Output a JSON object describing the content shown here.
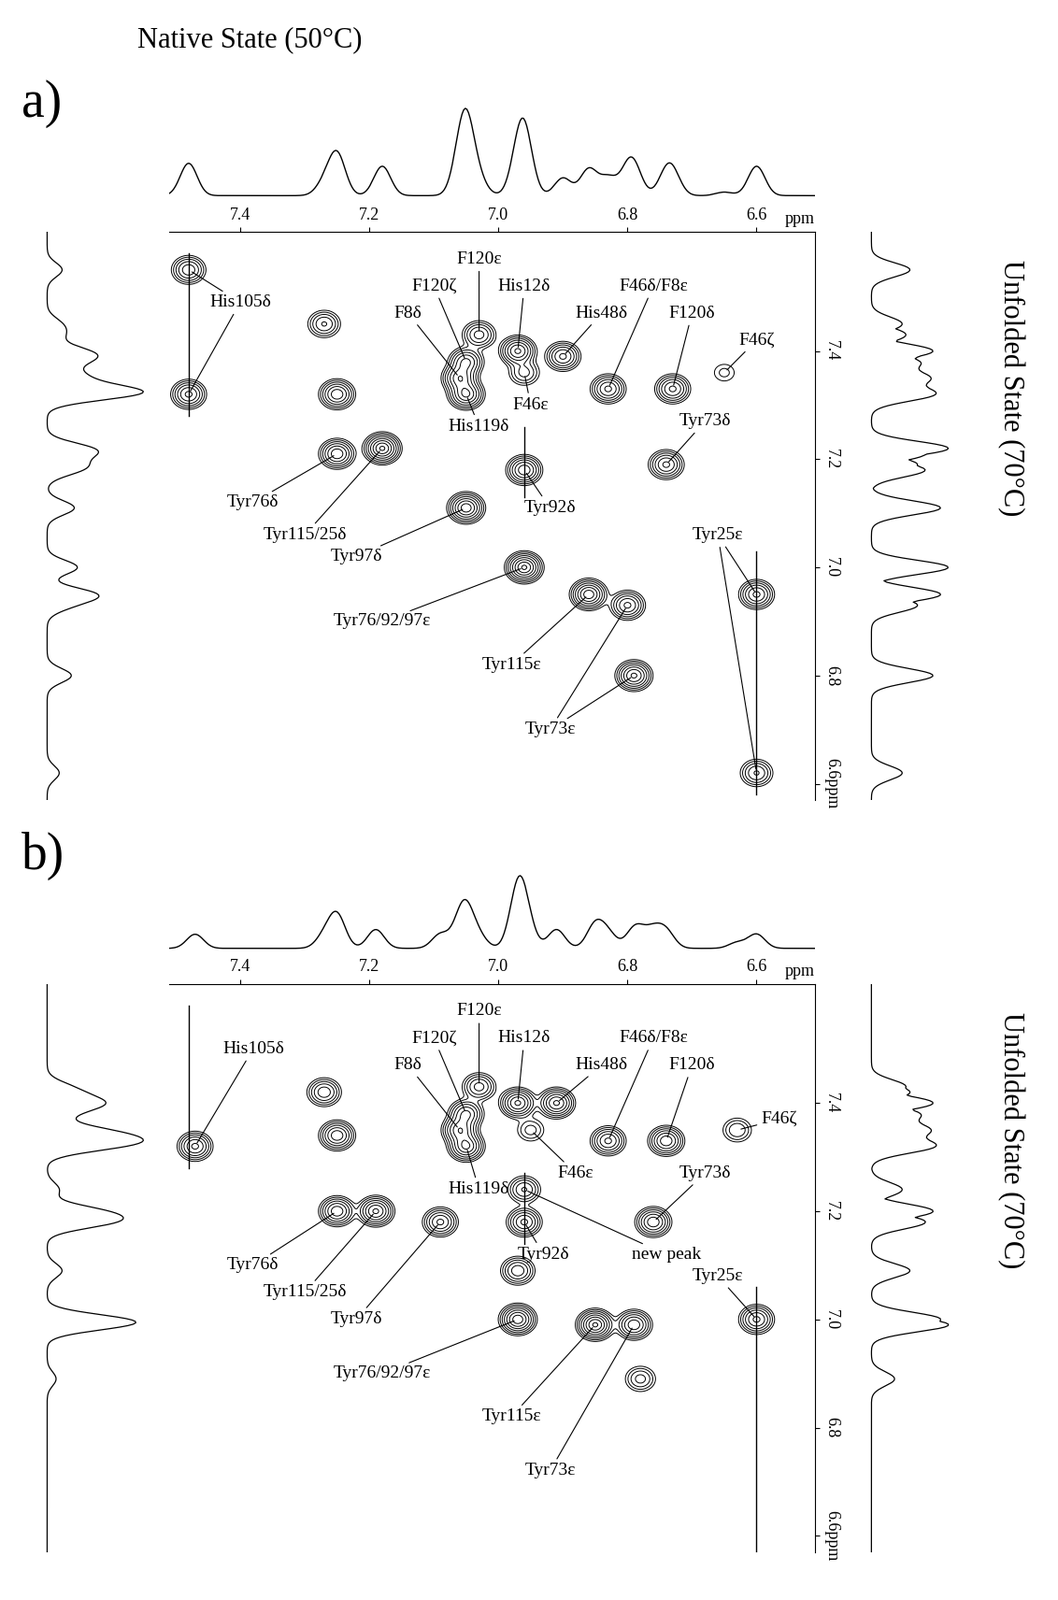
{
  "chart_data": [
    {
      "type": "contour",
      "label": "a)",
      "x_label": "Native State (50°C)",
      "y_label": "Unfolded State (70°C)",
      "x_unit": "ppm",
      "xlim": [
        7.51,
        6.51
      ],
      "ylim": [
        6.57,
        7.62
      ],
      "xticks": [
        7.4,
        7.2,
        7.0,
        6.8,
        6.6
      ],
      "yticks": [
        7.4,
        7.2,
        7.0,
        6.8,
        {
          "value": 6.6,
          "label": "6.6ppm"
        }
      ],
      "color": "#000000",
      "lines": [
        {
          "x": 7.48,
          "y": [
            7.58,
            7.28
          ]
        },
        {
          "x": 6.96,
          "y": [
            7.26,
            7.13
          ]
        },
        {
          "x": 6.6,
          "y": [
            7.03,
            6.58
          ]
        }
      ],
      "peaks": [
        {
          "label": "His105δ",
          "x": 7.48,
          "y": 7.55,
          "intensity": 0.5
        },
        {
          "label": "His105δ",
          "x": 7.48,
          "y": 7.32,
          "intensity": 0.6
        },
        {
          "label": null,
          "x": 7.27,
          "y": 7.45,
          "intensity": 0.4
        },
        {
          "label": null,
          "x": 7.25,
          "y": 7.32,
          "intensity": 0.7
        },
        {
          "label": "F120ε",
          "x": 7.03,
          "y": 7.43,
          "intensity": 0.45
        },
        {
          "label": "F120ζ",
          "x": 7.05,
          "y": 7.38,
          "intensity": 0.6
        },
        {
          "label": "F8δ",
          "x": 7.06,
          "y": 7.35,
          "intensity": 0.7
        },
        {
          "label": "His119δ",
          "x": 7.05,
          "y": 7.32,
          "intensity": 0.8
        },
        {
          "label": "F46ε",
          "x": 6.96,
          "y": 7.36,
          "intensity": 0.3
        },
        {
          "label": "His12δ",
          "x": 6.97,
          "y": 7.4,
          "intensity": 0.8
        },
        {
          "label": "His48δ",
          "x": 6.9,
          "y": 7.39,
          "intensity": 0.6
        },
        {
          "label": "F46δ/F8ε",
          "x": 6.83,
          "y": 7.33,
          "intensity": 0.6
        },
        {
          "label": "F120δ",
          "x": 6.73,
          "y": 7.33,
          "intensity": 0.6
        },
        {
          "label": "F46ζ",
          "x": 6.65,
          "y": 7.36,
          "intensity": 0.12
        },
        {
          "label": "Tyr76δ",
          "x": 7.25,
          "y": 7.21,
          "intensity": 0.7
        },
        {
          "label": "Tyr115/25δ",
          "x": 7.18,
          "y": 7.22,
          "intensity": 1.0
        },
        {
          "label": "Tyr97δ",
          "x": 7.05,
          "y": 7.11,
          "intensity": 0.9
        },
        {
          "label": "Tyr92δ",
          "x": 6.96,
          "y": 7.18,
          "intensity": 0.7
        },
        {
          "label": "Tyr73δ",
          "x": 6.74,
          "y": 7.19,
          "intensity": 0.6
        },
        {
          "label": "Tyr76/92/97ε",
          "x": 6.96,
          "y": 7.0,
          "intensity": 1.0
        },
        {
          "label": "Tyr115ε",
          "x": 6.86,
          "y": 6.95,
          "intensity": 0.9
        },
        {
          "label": "Tyr73ε",
          "x": 6.8,
          "y": 6.93,
          "intensity": 0.6
        },
        {
          "label": "Tyr73ε",
          "x": 6.79,
          "y": 6.8,
          "intensity": 0.8
        },
        {
          "label": "Tyr25ε",
          "x": 6.6,
          "y": 6.95,
          "intensity": 0.6
        },
        {
          "label": "Tyr25ε",
          "x": 6.6,
          "y": 6.62,
          "intensity": 0.4
        }
      ]
    },
    {
      "type": "contour",
      "label": "b)",
      "y_label": "Unfolded State (70°C)",
      "x_unit": "ppm",
      "xlim": [
        7.51,
        6.51
      ],
      "ylim": [
        6.57,
        7.62
      ],
      "xticks": [
        7.4,
        7.2,
        7.0,
        6.8,
        6.6
      ],
      "yticks": [
        7.4,
        7.2,
        7.0,
        6.8,
        {
          "value": 6.6,
          "label": "6.6ppm"
        }
      ],
      "color": "#000000",
      "lines": [
        {
          "x": 7.48,
          "y": [
            7.58,
            7.28
          ]
        },
        {
          "x": 6.96,
          "y": [
            7.27,
            7.14
          ]
        },
        {
          "x": 6.6,
          "y": [
            7.06,
            6.57
          ]
        }
      ],
      "peaks": [
        {
          "label": "His105δ",
          "x": 7.47,
          "y": 7.32,
          "intensity": 0.6
        },
        {
          "label": null,
          "x": 7.27,
          "y": 7.42,
          "intensity": 0.5
        },
        {
          "label": null,
          "x": 7.25,
          "y": 7.34,
          "intensity": 0.7
        },
        {
          "label": "F120ε",
          "x": 7.03,
          "y": 7.43,
          "intensity": 0.45
        },
        {
          "label": "F120ζ",
          "x": 7.05,
          "y": 7.38,
          "intensity": 0.6
        },
        {
          "label": "F8δ",
          "x": 7.06,
          "y": 7.35,
          "intensity": 0.7
        },
        {
          "label": "His119δ",
          "x": 7.05,
          "y": 7.32,
          "intensity": 0.8
        },
        {
          "label": "His12δ",
          "x": 6.97,
          "y": 7.4,
          "intensity": 0.8
        },
        {
          "label": "His48δ",
          "x": 6.91,
          "y": 7.4,
          "intensity": 0.8
        },
        {
          "label": "F46ε",
          "x": 6.95,
          "y": 7.35,
          "intensity": 0.2
        },
        {
          "label": "F46δ/F8ε",
          "x": 6.83,
          "y": 7.33,
          "intensity": 0.6
        },
        {
          "label": "F120δ",
          "x": 6.74,
          "y": 7.33,
          "intensity": 0.7
        },
        {
          "label": "F46ζ",
          "x": 6.63,
          "y": 7.35,
          "intensity": 0.25
        },
        {
          "label": "Tyr76δ",
          "x": 7.25,
          "y": 7.2,
          "intensity": 0.7
        },
        {
          "label": "Tyr115/25δ",
          "x": 7.19,
          "y": 7.2,
          "intensity": 0.8
        },
        {
          "label": "Tyr97δ",
          "x": 7.09,
          "y": 7.18,
          "intensity": 0.6
        },
        {
          "label": "new peak",
          "x": 6.96,
          "y": 7.24,
          "intensity": 0.4
        },
        {
          "label": "Tyr92δ",
          "x": 6.96,
          "y": 7.18,
          "intensity": 0.6
        },
        {
          "label": "Tyr73δ",
          "x": 6.76,
          "y": 7.18,
          "intensity": 0.7
        },
        {
          "label": null,
          "x": 6.97,
          "y": 7.09,
          "intensity": 0.5
        },
        {
          "label": "Tyr76/92/97ε",
          "x": 6.97,
          "y": 7.0,
          "intensity": 0.9
        },
        {
          "label": "Tyr115ε",
          "x": 6.85,
          "y": 6.99,
          "intensity": 1.0
        },
        {
          "label": "Tyr73ε",
          "x": 6.79,
          "y": 6.99,
          "intensity": 0.7
        },
        {
          "label": null,
          "x": 6.78,
          "y": 6.89,
          "intensity": 0.3
        },
        {
          "label": "Tyr25ε",
          "x": 6.6,
          "y": 7.0,
          "intensity": 0.6
        }
      ]
    }
  ]
}
